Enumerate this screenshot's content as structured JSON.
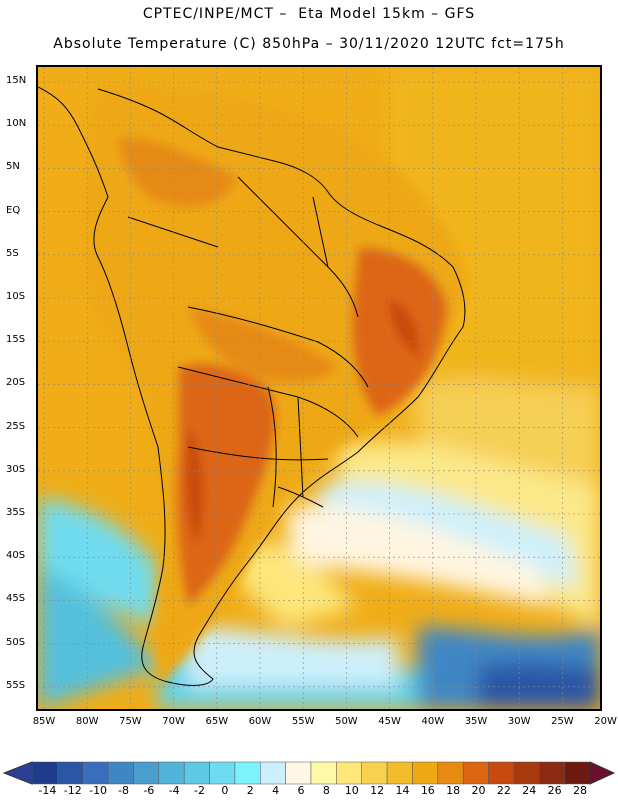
{
  "header": {
    "line1": "CPTEC/INPE/MCT –  Eta Model 15km – GFS",
    "line2": "Absolute Temperature (C) 850hPa – 30/11/2020 12UTC fct=175h"
  },
  "map": {
    "lat_labels": [
      "15N",
      "10N",
      "5N",
      "EQ",
      "5S",
      "10S",
      "15S",
      "20S",
      "25S",
      "30S",
      "35S",
      "40S",
      "45S",
      "50S",
      "55S"
    ],
    "lon_labels": [
      "85W",
      "80W",
      "75W",
      "70W",
      "65W",
      "60W",
      "55W",
      "50W",
      "45W",
      "40W",
      "35W",
      "30W",
      "25W",
      "20W"
    ]
  },
  "colorbar": {
    "labels": [
      "-14",
      "-12",
      "-10",
      "-8",
      "-6",
      "-4",
      "-2",
      "0",
      "2",
      "4",
      "6",
      "8",
      "10",
      "12",
      "14",
      "16",
      "18",
      "20",
      "22",
      "24",
      "26",
      "28"
    ],
    "colors": [
      "#1f3c8c",
      "#2a56a6",
      "#3a6ebd",
      "#3f86c5",
      "#4a9dcc",
      "#52b4d8",
      "#5ec9e3",
      "#6edcf0",
      "#7cf2fb",
      "#cdeffb",
      "#fff7e6",
      "#fffaa8",
      "#fde67a",
      "#f8d24e",
      "#f2bc2a",
      "#eea812",
      "#e68a12",
      "#dd6612",
      "#c84a10",
      "#a83a10",
      "#8a2a10",
      "#6e1a12"
    ],
    "left_arrow_color": "#2b3f96",
    "right_arrow_color": "#6a0f2c"
  }
}
